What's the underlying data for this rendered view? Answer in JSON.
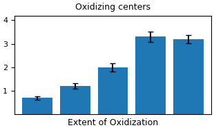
{
  "chart_data": {
    "type": "bar",
    "title": "Oxidizing centers",
    "xlabel": "Extent of Oxidization",
    "categories": [
      null,
      null,
      null,
      null,
      null
    ],
    "values": [
      0.7,
      1.2,
      2.0,
      3.3,
      3.2
    ],
    "errors": [
      0.08,
      0.12,
      0.18,
      0.22,
      0.18
    ],
    "ylim": [
      0,
      4.2
    ],
    "yticks": [
      1,
      2,
      3,
      4
    ],
    "tick_labels": "y"
  }
}
